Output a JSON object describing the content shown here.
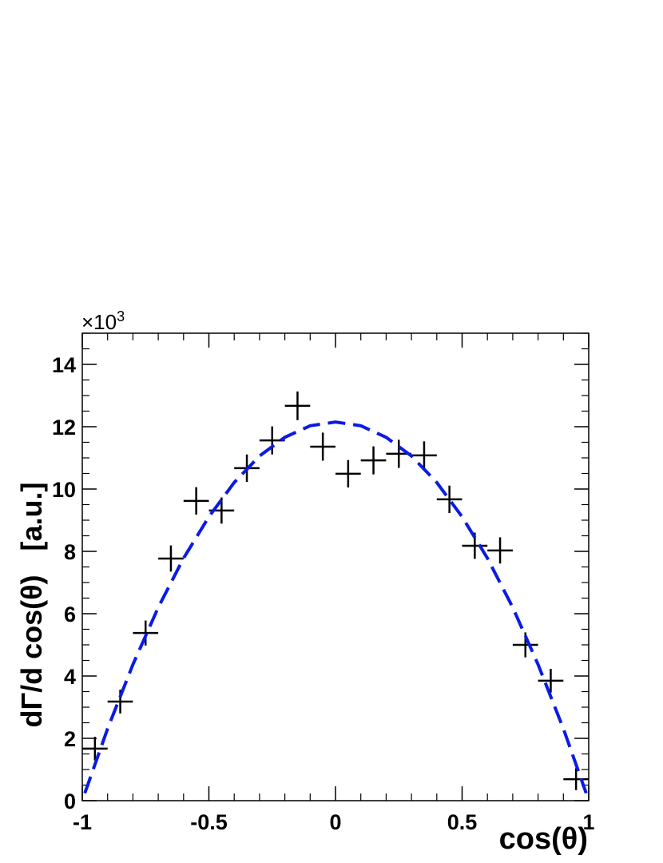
{
  "chart_data": {
    "type": "errorbar",
    "x_label": "cos(θ)",
    "y_label": "dΓ/d cos(θ)   [a.u.]",
    "y_multiplier": "×10",
    "y_multiplier_exponent": "3",
    "xlim": [
      -1,
      1
    ],
    "ylim": [
      0,
      15
    ],
    "xticks": [
      -1,
      -0.5,
      0,
      0.5,
      1
    ],
    "yticks": [
      0,
      2,
      4,
      6,
      8,
      10,
      12,
      14
    ],
    "series": [
      {
        "color": "#000000",
        "x": [
          -0.95,
          -0.85,
          -0.75,
          -0.65,
          -0.55,
          -0.45,
          -0.35,
          -0.25,
          -0.15,
          -0.05,
          0.05,
          0.15,
          0.25,
          0.35,
          0.45,
          0.55,
          0.65,
          0.75,
          0.85,
          0.95
        ],
        "values": [
          1.67,
          3.18,
          5.38,
          7.77,
          9.62,
          9.31,
          10.67,
          11.56,
          12.67,
          11.36,
          10.49,
          10.92,
          11.13,
          11.08,
          9.67,
          8.18,
          8.03,
          5.0,
          3.85,
          0.69
        ],
        "x_err": [
          0.05,
          0.05,
          0.05,
          0.05,
          0.05,
          0.05,
          0.05,
          0.05,
          0.05,
          0.05,
          0.05,
          0.05,
          0.05,
          0.05,
          0.05,
          0.05,
          0.05,
          0.05,
          0.05,
          0.05
        ],
        "y_err": [
          0.38,
          0.38,
          0.4,
          0.42,
          0.44,
          0.42,
          0.44,
          0.45,
          0.46,
          0.45,
          0.44,
          0.45,
          0.45,
          0.45,
          0.44,
          0.42,
          0.42,
          0.4,
          0.38,
          0.35
        ]
      },
      {
        "color": "#0a1be6",
        "style": "line-dashed",
        "x": [
          -0.99,
          -0.9,
          -0.8,
          -0.7,
          -0.6,
          -0.5,
          -0.4,
          -0.3,
          -0.2,
          -0.1,
          0,
          0.1,
          0.2,
          0.3,
          0.4,
          0.5,
          0.6,
          0.7,
          0.8,
          0.9,
          0.99
        ],
        "values": [
          0.24,
          2.31,
          4.37,
          6.2,
          7.78,
          9.11,
          10.21,
          11.06,
          11.66,
          12.03,
          12.15,
          12.03,
          11.66,
          11.06,
          10.21,
          9.11,
          7.78,
          6.2,
          4.37,
          2.31,
          0.24
        ]
      }
    ]
  }
}
